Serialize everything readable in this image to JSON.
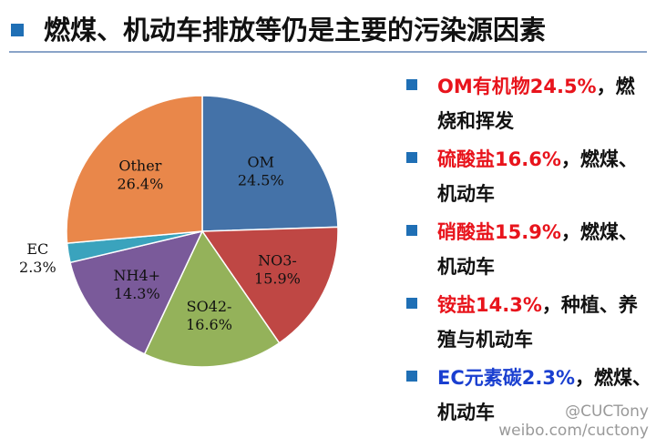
{
  "title": "燃煤、机动车排放等仍是主要的污染源因素",
  "colors": {
    "accent": "#1f6fb5",
    "highlight_red": "#e8141c",
    "highlight_blue": "#1a3fd0"
  },
  "chart_data": {
    "type": "pie",
    "title": "",
    "slices": [
      {
        "label": "OM",
        "value": 24.5,
        "display": "24.5%",
        "color": "#4472a8"
      },
      {
        "label": "NO3-",
        "value": 15.9,
        "display": "15.9%",
        "color": "#bf4744"
      },
      {
        "label": "SO42-",
        "value": 16.6,
        "display": "16.6%",
        "color": "#94b25a"
      },
      {
        "label": "NH4+",
        "value": 14.3,
        "display": "14.3%",
        "color": "#7a5a9a"
      },
      {
        "label": "EC",
        "value": 2.3,
        "display": "2.3%",
        "color": "#3aa3bd"
      },
      {
        "label": "Other",
        "value": 26.4,
        "display": "26.4%",
        "color": "#e9874a"
      }
    ]
  },
  "notes": [
    {
      "key": "OM有机物24.5%",
      "rest": "，燃烧和挥发",
      "key_color": "red"
    },
    {
      "key": "硫酸盐16.6%",
      "rest": "，燃煤、机动车",
      "key_color": "red"
    },
    {
      "key": "硝酸盐15.9%",
      "rest": "，燃煤、机动车",
      "key_color": "red"
    },
    {
      "key": "铵盐14.3%",
      "rest": "，种植、养殖与机动车",
      "key_color": "red"
    },
    {
      "key": "EC元素碳2.3%",
      "rest": "，燃煤、机动车",
      "key_color": "blue"
    }
  ],
  "watermark": {
    "line1": "@CUCTony",
    "line2": "weibo.com/cuctony"
  }
}
